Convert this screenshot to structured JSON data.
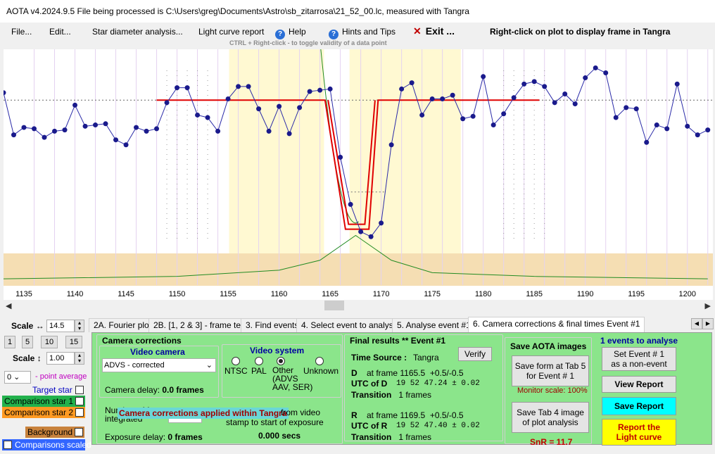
{
  "window": {
    "title": "AOTA v4.2024.9.5    File being processed is C:\\Users\\greg\\Documents\\Astro\\sb_zitarrosa\\21_52_00.lc, measured with Tangra"
  },
  "menu": {
    "file": "File...",
    "edit": "Edit...",
    "star_diameter": "Star diameter analysis...",
    "light_curve_report": "Light curve report",
    "help": "Help",
    "hints": "Hints and Tips",
    "exit": "Exit ...",
    "right_click_hint": "Right-click on plot to display frame in Tangra",
    "ctrl_hint": "CTRL + Right-click   -  to toggle validity of a data point"
  },
  "chart_data": {
    "type": "line",
    "x_ticks": [
      "1135",
      "1140",
      "1145",
      "1150",
      "1155",
      "1160",
      "1165",
      "1170",
      "1175",
      "1180",
      "1185",
      "1190",
      "1195",
      "1200"
    ],
    "xlim": [
      1133,
      1202.5
    ],
    "ylim": [
      -0.45,
      1.45
    ],
    "series": [
      {
        "x": [
          1133,
          1134,
          1135,
          1136,
          1137,
          1138,
          1139,
          1140,
          1141,
          1142,
          1143,
          1144,
          1145,
          1146,
          1147,
          1148,
          1149,
          1150,
          1151,
          1152,
          1153,
          1154,
          1155,
          1156,
          1157,
          1158,
          1159,
          1160,
          1161,
          1162,
          1163,
          1164,
          1165,
          1166,
          1167,
          1168,
          1169,
          1170,
          1171,
          1172,
          1173,
          1174,
          1175,
          1176,
          1177,
          1178,
          1179,
          1180,
          1181,
          1182,
          1183,
          1184,
          1185,
          1186,
          1187,
          1188,
          1189,
          1190,
          1191,
          1192,
          1193,
          1194,
          1195,
          1196,
          1197,
          1198,
          1199,
          1200,
          1201,
          1202
        ],
        "values": [
          1.1,
          0.76,
          0.82,
          0.81,
          0.74,
          0.79,
          0.8,
          1.0,
          0.83,
          0.84,
          0.85,
          0.72,
          0.68,
          0.82,
          0.79,
          0.81,
          1.02,
          1.14,
          1.14,
          0.92,
          0.9,
          0.79,
          1.05,
          1.15,
          1.15,
          0.97,
          0.79,
          0.99,
          0.77,
          0.98,
          1.11,
          1.12,
          1.13,
          0.58,
          0.2,
          -0.02,
          -0.06,
          0.05,
          0.68,
          1.13,
          1.18,
          0.92,
          1.05,
          1.05,
          1.08,
          0.89,
          0.91,
          1.23,
          0.84,
          0.93,
          1.06,
          1.17,
          1.19,
          1.15,
          1.02,
          1.09,
          1.01,
          1.22,
          1.3,
          1.26,
          0.9,
          0.98,
          0.97,
          0.7,
          0.84,
          0.81,
          1.17,
          0.83,
          0.76,
          0.8
        ]
      }
    ]
  }
}
